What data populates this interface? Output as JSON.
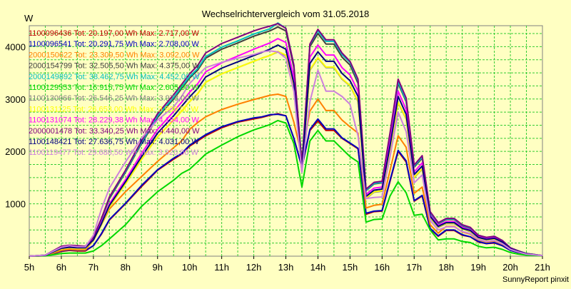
{
  "chart_data": {
    "type": "line",
    "title": "Wechselrichtervergleich vom 31.05.2018",
    "y_unit": "W",
    "footer": "SunnyReport pinxit",
    "xlim": [
      5,
      21
    ],
    "ylim": [
      0,
      4400
    ],
    "x_ticks": [
      {
        "value": 5,
        "label": "5h"
      },
      {
        "value": 6,
        "label": "6h"
      },
      {
        "value": 7,
        "label": "7h"
      },
      {
        "value": 8,
        "label": "8h"
      },
      {
        "value": 9,
        "label": "9h"
      },
      {
        "value": 10,
        "label": "10h"
      },
      {
        "value": 11,
        "label": "11h"
      },
      {
        "value": 12,
        "label": "12h"
      },
      {
        "value": 13,
        "label": "13h"
      },
      {
        "value": 14,
        "label": "14h"
      },
      {
        "value": 15,
        "label": "15h"
      },
      {
        "value": 16,
        "label": "16h"
      },
      {
        "value": 17,
        "label": "17h"
      },
      {
        "value": 18,
        "label": "18h"
      },
      {
        "value": 19,
        "label": "19h"
      },
      {
        "value": 20,
        "label": "20h"
      },
      {
        "value": 21,
        "label": "21h"
      }
    ],
    "y_ticks": [
      {
        "value": 1000,
        "label": "1000"
      },
      {
        "value": 2000,
        "label": "2000"
      },
      {
        "value": 3000,
        "label": "3000"
      },
      {
        "value": 4000,
        "label": "4000"
      }
    ],
    "grid": true,
    "legend_position": "top-left",
    "x": [
      5.0,
      5.5,
      6.0,
      6.25,
      6.5,
      6.75,
      7.0,
      7.25,
      7.5,
      8.0,
      8.5,
      9.0,
      9.5,
      9.75,
      10.0,
      10.25,
      10.5,
      11.0,
      11.5,
      12.0,
      12.25,
      12.5,
      12.75,
      13.0,
      13.25,
      13.5,
      13.75,
      14.0,
      14.25,
      14.5,
      14.75,
      15.0,
      15.25,
      15.5,
      15.75,
      16.0,
      16.25,
      16.5,
      16.75,
      17.0,
      17.25,
      17.5,
      17.75,
      18.0,
      18.25,
      18.5,
      18.75,
      19.0,
      19.25,
      19.5,
      19.75,
      20.0,
      20.25,
      20.5,
      21.0
    ],
    "series": [
      {
        "id": "1100096436",
        "legend": "1100096436 Tot: 20.197,00 Wh Max: 2.717,00 W",
        "color": "#c00000",
        "values": [
          0,
          10,
          90,
          110,
          100,
          100,
          200,
          420,
          690,
          1000,
          1330,
          1640,
          1850,
          1950,
          2100,
          2200,
          2300,
          2450,
          2560,
          2620,
          2650,
          2690,
          2720,
          2680,
          2250,
          1700,
          2400,
          2580,
          2400,
          2400,
          2250,
          2150,
          2050,
          800,
          850,
          860,
          1430,
          2000,
          1800,
          1050,
          1150,
          520,
          380,
          490,
          490,
          400,
          370,
          270,
          240,
          250,
          200,
          110,
          70,
          40,
          10
        ]
      },
      {
        "id": "1100096541",
        "legend": "1100096541 Tot: 20.291,75 Wh Max: 2.708,00 W",
        "color": "#0000c0",
        "values": [
          0,
          10,
          100,
          120,
          110,
          110,
          200,
          430,
          700,
          1010,
          1350,
          1650,
          1870,
          1960,
          2120,
          2220,
          2320,
          2470,
          2570,
          2640,
          2660,
          2700,
          2710,
          2680,
          2250,
          1700,
          2420,
          2620,
          2430,
          2430,
          2260,
          2160,
          2060,
          820,
          860,
          870,
          1450,
          2020,
          1820,
          1060,
          1160,
          530,
          390,
          500,
          500,
          410,
          370,
          280,
          240,
          260,
          200,
          110,
          70,
          40,
          10
        ]
      },
      {
        "id": "2000150622",
        "legend": "2000150622 Tot: 23.309,50 Wh Max: 3.092,00 W",
        "color": "#ff8000",
        "values": [
          0,
          10,
          110,
          130,
          120,
          120,
          300,
          600,
          900,
          1230,
          1520,
          1810,
          2070,
          2200,
          2420,
          2550,
          2660,
          2800,
          2900,
          2990,
          3030,
          3070,
          3092,
          3050,
          2560,
          1900,
          2770,
          3000,
          2780,
          2780,
          2600,
          2470,
          2350,
          920,
          970,
          990,
          1640,
          2300,
          2080,
          1200,
          1320,
          600,
          440,
          570,
          570,
          460,
          420,
          310,
          270,
          290,
          230,
          130,
          80,
          40,
          10
        ]
      },
      {
        "id": "2000154799",
        "legend": "2000154799 Tot: 32.505,50 Wh Max: 4.375,00 W",
        "color": "#404040",
        "values": [
          0,
          20,
          180,
          200,
          190,
          180,
          350,
          700,
          1100,
          1600,
          2150,
          2650,
          3000,
          3200,
          3400,
          3550,
          3780,
          3950,
          4070,
          4200,
          4250,
          4300,
          4375,
          4300,
          3600,
          1700,
          4000,
          4250,
          4050,
          4050,
          3800,
          3650,
          3300,
          1250,
          1380,
          1400,
          2300,
          3300,
          2950,
          1700,
          1870,
          820,
          620,
          700,
          700,
          580,
          530,
          390,
          350,
          370,
          290,
          160,
          100,
          50,
          10
        ]
      },
      {
        "id": "2000149892",
        "legend": "2000149892 Tot: 38.462,75 Wh Max: 4.452,00 W",
        "color": "#00c0c0",
        "values": [
          0,
          20,
          180,
          200,
          190,
          180,
          350,
          710,
          1120,
          1620,
          2170,
          2680,
          3030,
          3230,
          3430,
          3580,
          3810,
          3990,
          4110,
          4240,
          4290,
          4340,
          4452,
          4350,
          3650,
          1720,
          4040,
          4300,
          4100,
          4100,
          3850,
          3700,
          3350,
          1260,
          1390,
          1410,
          2320,
          3330,
          2970,
          1720,
          1890,
          830,
          630,
          710,
          710,
          590,
          540,
          400,
          350,
          380,
          300,
          160,
          100,
          50,
          10
        ]
      },
      {
        "id": "1100129553",
        "legend": "1100129553 Tot: 16.915,75 Wh Max: 2.605,00 W",
        "color": "#00d800",
        "values": [
          0,
          5,
          50,
          60,
          60,
          60,
          100,
          200,
          330,
          600,
          950,
          1230,
          1450,
          1580,
          1660,
          1800,
          1950,
          2120,
          2280,
          2410,
          2460,
          2510,
          2590,
          2540,
          2150,
          1320,
          2200,
          2400,
          2200,
          2200,
          2050,
          1900,
          1800,
          650,
          700,
          710,
          1150,
          1420,
          1210,
          780,
          800,
          500,
          310,
          330,
          330,
          280,
          260,
          190,
          160,
          170,
          130,
          70,
          40,
          20,
          5
        ]
      },
      {
        "id": "1100130966",
        "legend": "1100130966 Tot: 26.546,25 Wh Max: 3.978,00 W",
        "color": "#808080",
        "values": [
          0,
          15,
          140,
          160,
          150,
          150,
          300,
          600,
          940,
          1380,
          1850,
          2280,
          2600,
          2770,
          2950,
          3100,
          3320,
          3480,
          3600,
          3720,
          3780,
          3830,
          3900,
          3830,
          3200,
          1600,
          3550,
          3780,
          3600,
          3600,
          3380,
          3250,
          2950,
          1100,
          1220,
          1240,
          2040,
          2930,
          2620,
          1500,
          1660,
          730,
          550,
          620,
          620,
          520,
          470,
          350,
          310,
          330,
          260,
          140,
          90,
          45,
          10
        ]
      },
      {
        "id": "1100131125",
        "legend": "1100131125 Tot: 26.653,00 Wh Max: 3.909,00 W",
        "color": "#ffff00",
        "values": [
          0,
          15,
          140,
          160,
          150,
          150,
          300,
          600,
          940,
          1380,
          1850,
          2280,
          2600,
          2770,
          2950,
          3100,
          3320,
          3480,
          3600,
          3720,
          3780,
          3830,
          3909,
          3840,
          3220,
          1610,
          3560,
          3790,
          3610,
          3610,
          3390,
          3260,
          2960,
          1110,
          1230,
          1250,
          2050,
          2940,
          2630,
          1510,
          1670,
          740,
          560,
          630,
          630,
          520,
          480,
          350,
          310,
          330,
          260,
          140,
          90,
          45,
          10
        ]
      },
      {
        "id": "1100131074",
        "legend": "1100131074 Tot: 28.229,38 Wh Max: 4.154,00 W",
        "color": "#ff00ff",
        "values": [
          0,
          15,
          160,
          180,
          170,
          170,
          320,
          640,
          1000,
          1460,
          1960,
          2420,
          2760,
          2940,
          3130,
          3290,
          3520,
          3690,
          3820,
          3950,
          4010,
          4070,
          4154,
          4080,
          3420,
          1650,
          3800,
          4030,
          3840,
          3840,
          3600,
          3460,
          3150,
          1180,
          1300,
          1320,
          2180,
          3150,
          2800,
          1610,
          1780,
          780,
          590,
          660,
          660,
          550,
          500,
          370,
          330,
          350,
          280,
          150,
          95,
          45,
          10
        ]
      },
      {
        "id": "2000001478",
        "legend": "2000001478 Tot: 33.340,25 Wh Max: 4.440,00 W",
        "color": "#800080",
        "values": [
          0,
          20,
          190,
          210,
          200,
          190,
          360,
          720,
          1130,
          1640,
          2200,
          2720,
          3080,
          3280,
          3480,
          3640,
          3880,
          4060,
          4180,
          4300,
          4350,
          4390,
          4440,
          4350,
          3650,
          1750,
          4050,
          4330,
          4130,
          4130,
          3880,
          3720,
          3380,
          1280,
          1410,
          1430,
          2360,
          3380,
          3020,
          1740,
          1920,
          850,
          640,
          720,
          720,
          600,
          550,
          400,
          360,
          380,
          300,
          160,
          100,
          50,
          10
        ]
      },
      {
        "id": "1100148421",
        "legend": "1100148421 Tot: 27.636,75 Wh Max: 4.031,00 W",
        "color": "#000080",
        "values": [
          0,
          15,
          150,
          170,
          160,
          160,
          310,
          620,
          970,
          1420,
          1900,
          2350,
          2680,
          2860,
          3040,
          3200,
          3420,
          3590,
          3710,
          3830,
          3890,
          3950,
          4031,
          3950,
          3300,
          1620,
          3680,
          3900,
          3720,
          3720,
          3490,
          3350,
          3050,
          1140,
          1260,
          1280,
          2110,
          3050,
          2710,
          1560,
          1720,
          760,
          570,
          640,
          640,
          530,
          490,
          360,
          320,
          340,
          270,
          140,
          90,
          45,
          10
        ]
      },
      {
        "id": "1100119477",
        "legend": "1100119477 Tot: 29.688,50 Wh Max: 3.920,00 W",
        "color": "#cc80dd",
        "values": [
          0,
          20,
          170,
          200,
          180,
          180,
          400,
          900,
          1300,
          1800,
          2250,
          2600,
          2850,
          3050,
          3300,
          3450,
          3600,
          3700,
          3780,
          3850,
          3900,
          3920,
          3900,
          3780,
          3150,
          1600,
          2950,
          3550,
          3150,
          3150,
          3050,
          2900,
          2300,
          1100,
          1120,
          1130,
          1900,
          2750,
          2380,
          1400,
          1550,
          680,
          500,
          560,
          560,
          470,
          430,
          320,
          280,
          300,
          240,
          130,
          80,
          40,
          10
        ]
      }
    ]
  }
}
